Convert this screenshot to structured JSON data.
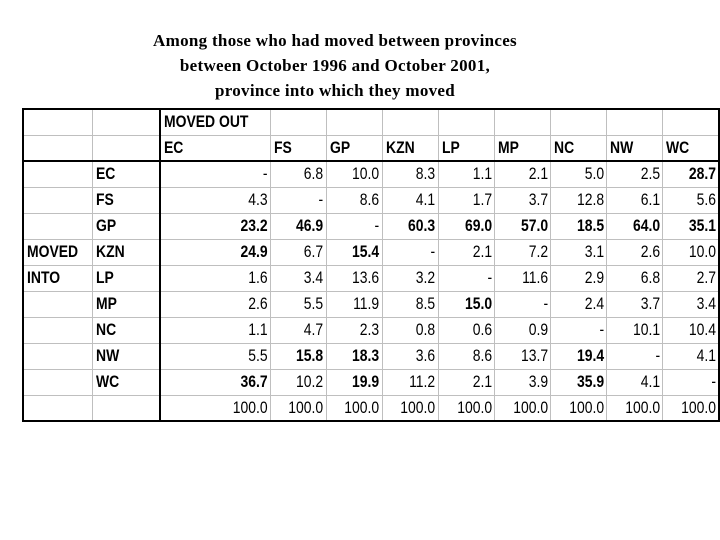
{
  "title": [
    "Among those who had moved between provinces",
    "between October 1996 and October 2001,",
    "province into which they moved"
  ],
  "header": {
    "moved_out": "MOVED OUT",
    "moved_into": "MOVED",
    "moved_into2": "INTO",
    "columns": [
      "EC",
      "FS",
      "GP",
      "KZN",
      "LP",
      "MP",
      "NC",
      "NW",
      "WC"
    ]
  },
  "rows": [
    {
      "label": "EC",
      "values": [
        "-",
        "6.8",
        "10.0",
        "8.3",
        "1.1",
        "2.1",
        "5.0",
        "2.5",
        "28.7"
      ],
      "bold": [
        false,
        false,
        false,
        false,
        false,
        false,
        false,
        false,
        true
      ]
    },
    {
      "label": "FS",
      "values": [
        "4.3",
        "-",
        "8.6",
        "4.1",
        "1.7",
        "3.7",
        "12.8",
        "6.1",
        "5.6"
      ],
      "bold": [
        false,
        false,
        false,
        false,
        false,
        false,
        false,
        false,
        false
      ]
    },
    {
      "label": "GP",
      "values": [
        "23.2",
        "46.9",
        "-",
        "60.3",
        "69.0",
        "57.0",
        "18.5",
        "64.0",
        "35.1"
      ],
      "bold": [
        true,
        true,
        false,
        true,
        true,
        true,
        true,
        true,
        true
      ]
    },
    {
      "label": "KZN",
      "values": [
        "24.9",
        "6.7",
        "15.4",
        "-",
        "2.1",
        "7.2",
        "3.1",
        "2.6",
        "10.0"
      ],
      "bold": [
        true,
        false,
        true,
        false,
        false,
        false,
        false,
        false,
        false
      ]
    },
    {
      "label": "LP",
      "values": [
        "1.6",
        "3.4",
        "13.6",
        "3.2",
        "-",
        "11.6",
        "2.9",
        "6.8",
        "2.7"
      ],
      "bold": [
        false,
        false,
        false,
        false,
        false,
        false,
        false,
        false,
        false
      ]
    },
    {
      "label": "MP",
      "values": [
        "2.6",
        "5.5",
        "11.9",
        "8.5",
        "15.0",
        "-",
        "2.4",
        "3.7",
        "3.4"
      ],
      "bold": [
        false,
        false,
        false,
        false,
        true,
        false,
        false,
        false,
        false
      ]
    },
    {
      "label": "NC",
      "values": [
        "1.1",
        "4.7",
        "2.3",
        "0.8",
        "0.6",
        "0.9",
        "-",
        "10.1",
        "10.4"
      ],
      "bold": [
        false,
        false,
        false,
        false,
        false,
        false,
        false,
        false,
        false
      ]
    },
    {
      "label": "NW",
      "values": [
        "5.5",
        "15.8",
        "18.3",
        "3.6",
        "8.6",
        "13.7",
        "19.4",
        "-",
        "4.1"
      ],
      "bold": [
        false,
        true,
        true,
        false,
        false,
        false,
        true,
        false,
        false
      ]
    },
    {
      "label": "WC",
      "values": [
        "36.7",
        "10.2",
        "19.9",
        "11.2",
        "2.1",
        "3.9",
        "35.9",
        "4.1",
        "-"
      ],
      "bold": [
        true,
        false,
        true,
        false,
        false,
        false,
        true,
        false,
        false
      ]
    }
  ],
  "totals": [
    "100.0",
    "100.0",
    "100.0",
    "100.0",
    "100.0",
    "100.0",
    "100.0",
    "100.0",
    "100.0"
  ]
}
